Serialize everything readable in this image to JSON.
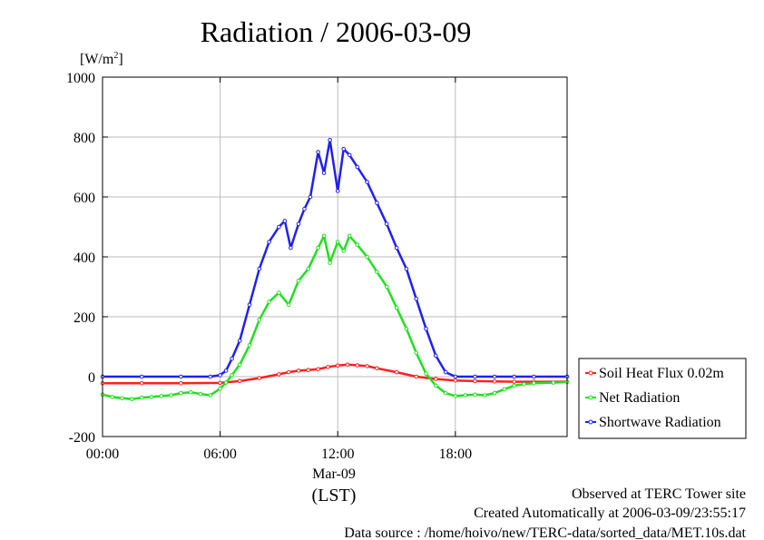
{
  "chart_data": {
    "type": "line",
    "title": "Radiation / 2006-03-09",
    "ylabel_unit": "[W/m",
    "ylabel_sup": "2",
    "ylabel_close": "]",
    "ylim": [
      -200,
      1000
    ],
    "yticks": [
      -200,
      0,
      200,
      400,
      600,
      800,
      1000
    ],
    "xlim": [
      0,
      23.7
    ],
    "xticks": [
      0,
      6,
      12,
      18
    ],
    "xtick_labels": [
      "00:00",
      "06:00",
      "12:00",
      "18:00"
    ],
    "xlabel_date": "Mar-09",
    "xlabel": "(LST)",
    "grid": true,
    "legend_position": "lower-right outside",
    "series": [
      {
        "name": "Soil Heat Flux 0.02m",
        "color": "#ff2020",
        "x": [
          0,
          2,
          4,
          6,
          7,
          8,
          9,
          9.5,
          10,
          10.5,
          11,
          11.5,
          12,
          12.5,
          13,
          13.5,
          14,
          15,
          16,
          17,
          18,
          19,
          20,
          21,
          22,
          23.7
        ],
        "y": [
          -22,
          -22,
          -22,
          -21,
          -15,
          -5,
          8,
          15,
          20,
          22,
          25,
          32,
          37,
          40,
          38,
          35,
          28,
          15,
          0,
          -8,
          -13,
          -15,
          -16,
          -17,
          -17,
          -17
        ]
      },
      {
        "name": "Net Radiation",
        "color": "#20e020",
        "x": [
          0,
          0.5,
          1,
          1.5,
          2,
          2.5,
          3,
          3.5,
          4,
          4.5,
          5,
          5.5,
          6,
          6.3,
          6.6,
          7,
          7.5,
          8,
          8.5,
          9,
          9.5,
          10,
          10.5,
          11,
          11.3,
          11.6,
          12,
          12.3,
          12.6,
          13,
          13.5,
          14,
          14.5,
          15,
          15.5,
          16,
          16.5,
          17,
          17.5,
          18,
          18.5,
          19,
          19.5,
          20,
          20.5,
          21,
          21.5,
          22,
          23,
          23.7
        ],
        "y": [
          -60,
          -68,
          -72,
          -75,
          -70,
          -68,
          -65,
          -62,
          -55,
          -52,
          -58,
          -62,
          -40,
          -20,
          5,
          40,
          105,
          190,
          250,
          280,
          240,
          320,
          360,
          430,
          470,
          380,
          450,
          420,
          470,
          440,
          400,
          350,
          300,
          230,
          160,
          80,
          10,
          -30,
          -55,
          -65,
          -62,
          -60,
          -62,
          -55,
          -42,
          -30,
          -25,
          -22,
          -20,
          -18
        ]
      },
      {
        "name": "Shortwave Radiation",
        "color": "#2020f0",
        "x": [
          0,
          2,
          4,
          5.5,
          6,
          6.3,
          6.6,
          7,
          7.5,
          8,
          8.5,
          9,
          9.3,
          9.6,
          10,
          10.3,
          10.6,
          11,
          11.3,
          11.6,
          12,
          12.3,
          12.6,
          13,
          13.5,
          14,
          14.5,
          15,
          15.5,
          16,
          16.5,
          17,
          17.5,
          18,
          19,
          20,
          21,
          22,
          23.7
        ],
        "y": [
          0,
          0,
          0,
          0,
          5,
          20,
          60,
          120,
          240,
          360,
          450,
          500,
          520,
          430,
          510,
          560,
          600,
          750,
          680,
          790,
          620,
          760,
          740,
          700,
          650,
          580,
          510,
          430,
          360,
          260,
          160,
          70,
          15,
          0,
          0,
          0,
          0,
          0,
          0
        ]
      }
    ]
  },
  "footer": {
    "line1": "Observed at TERC Tower site",
    "line2": "Created Automatically at 2006-03-09/23:55:17",
    "line3": "Data source : /home/hoivo/new/TERC-data/sorted_data/MET.10s.dat"
  }
}
